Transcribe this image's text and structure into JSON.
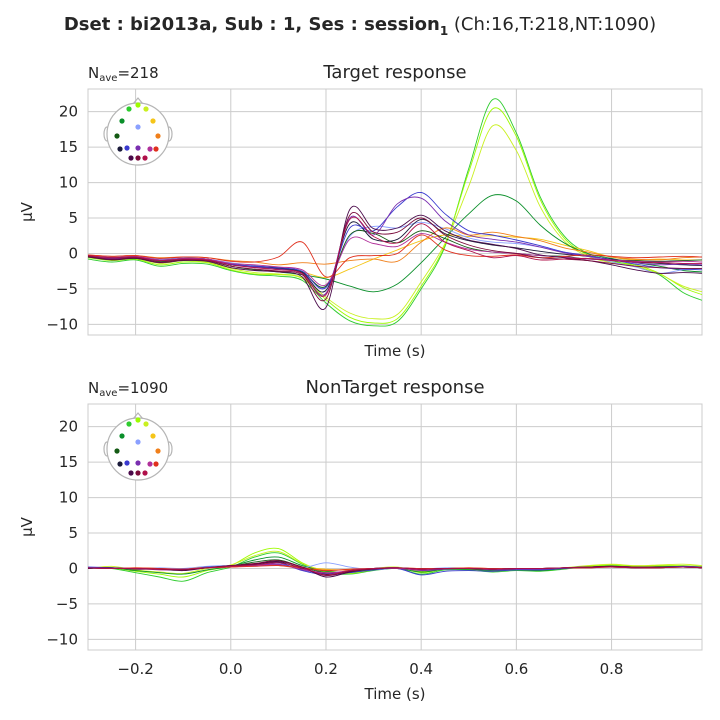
{
  "figure": {
    "suptitle_prefix": "Dset : bi2013a, Sub : 1, Ses : session",
    "suptitle_subscript": "1",
    "suptitle_suffix": " (Ch:16,T:218,NT:1090)"
  },
  "colors": {
    "grid": "#cccccc",
    "axes_bg": "#ffffff",
    "text": "#262626",
    "channels": [
      "#2ecc2e",
      "#9efc00",
      "#c9f020",
      "#f5c518",
      "#0a8f2a",
      "#8aa0ff",
      "#f07f1a",
      "#145a14",
      "#1a1a3a",
      "#3a3acf",
      "#7a2fb0",
      "#b0309a",
      "#e0301e",
      "#4a0a4a",
      "#7a0a3a",
      "#b0104a"
    ]
  },
  "chart_data": [
    {
      "type": "line",
      "title": "Target response",
      "n_ave_prefix": "N",
      "n_ave_sub": "ave",
      "n_ave_value": "=218",
      "xlabel": "Time (s)",
      "ylabel": "µV",
      "xlim": [
        -0.3,
        0.99
      ],
      "ylim": [
        -11.5,
        23.2
      ],
      "xticks": [
        -0.2,
        0.0,
        0.2,
        0.4,
        0.6,
        0.8
      ],
      "yticks": [
        20,
        15,
        10,
        5,
        0,
        -5,
        -10
      ],
      "ytick_labels": [
        "20",
        "15",
        "10",
        "5",
        "0",
        "−5",
        "−10"
      ],
      "show_xtick_labels": false,
      "grid": true,
      "x": [
        -0.3,
        -0.25,
        -0.2,
        -0.15,
        -0.1,
        -0.05,
        0.0,
        0.05,
        0.1,
        0.15,
        0.2,
        0.25,
        0.3,
        0.35,
        0.4,
        0.45,
        0.5,
        0.55,
        0.6,
        0.65,
        0.7,
        0.75,
        0.8,
        0.85,
        0.9,
        0.95,
        0.99
      ],
      "series": [
        {
          "values": [
            -0.8,
            -1.2,
            -0.9,
            -1.8,
            -1.4,
            -1.5,
            -2.4,
            -3.0,
            -3.2,
            -3.8,
            -7.0,
            -9.5,
            -10.2,
            -9.6,
            -5.0,
            1.0,
            12.0,
            21.7,
            17.0,
            8.0,
            2.5,
            0.0,
            -1.0,
            -1.8,
            -3.0,
            -5.5,
            -6.6
          ]
        },
        {
          "values": [
            -0.6,
            -1.0,
            -0.8,
            -1.6,
            -1.2,
            -1.3,
            -2.3,
            -2.9,
            -3.0,
            -3.5,
            -6.5,
            -9.0,
            -9.8,
            -9.2,
            -4.6,
            1.2,
            11.5,
            20.4,
            16.5,
            7.6,
            2.2,
            -0.2,
            -1.2,
            -1.6,
            -2.8,
            -4.8,
            -5.8
          ]
        },
        {
          "values": [
            -0.5,
            -0.9,
            -0.7,
            -1.4,
            -1.0,
            -1.2,
            -2.1,
            -2.7,
            -2.9,
            -3.4,
            -6.2,
            -8.4,
            -9.2,
            -8.6,
            -4.0,
            1.4,
            9.5,
            18.0,
            14.5,
            6.6,
            1.8,
            -0.4,
            -1.3,
            -1.8,
            -2.9,
            -4.6,
            -5.4
          ]
        },
        {
          "values": [
            -0.4,
            -0.6,
            -0.5,
            -0.9,
            -0.8,
            -0.9,
            -1.5,
            -1.9,
            -2.2,
            -2.6,
            -3.4,
            -2.2,
            -0.8,
            0.5,
            1.8,
            2.6,
            2.4,
            2.5,
            2.3,
            2.0,
            1.2,
            0.4,
            -0.5,
            -0.9,
            -0.8,
            -0.9,
            -0.9
          ]
        },
        {
          "values": [
            -0.5,
            -0.8,
            -0.7,
            -1.1,
            -0.9,
            -1.0,
            -1.8,
            -2.3,
            -2.6,
            -3.0,
            -3.6,
            -4.6,
            -5.4,
            -4.3,
            -1.3,
            2.2,
            5.6,
            8.2,
            7.4,
            4.0,
            1.5,
            0.0,
            -0.7,
            -1.3,
            -1.8,
            -2.4,
            -2.6
          ]
        },
        {
          "values": [
            -0.3,
            -0.5,
            -0.4,
            -0.8,
            -0.6,
            -0.8,
            -1.3,
            -1.7,
            -2.2,
            -2.7,
            -4.7,
            2.4,
            3.8,
            3.6,
            4.4,
            3.5,
            2.2,
            1.6,
            1.4,
            0.9,
            0.2,
            -0.4,
            -1.2,
            -1.9,
            -2.8,
            -2.3,
            -2.1
          ]
        },
        {
          "values": [
            -0.2,
            -0.4,
            -0.3,
            -0.6,
            -0.5,
            -0.6,
            -1.0,
            -1.2,
            -1.6,
            -1.3,
            -1.5,
            -1.0,
            -0.8,
            -1.1,
            1.6,
            3.6,
            2.6,
            3.0,
            2.4,
            1.8,
            0.8,
            0.2,
            -0.5,
            -0.8,
            -0.9,
            -0.6,
            -0.5
          ]
        },
        {
          "values": [
            -0.4,
            -0.6,
            -0.5,
            -0.9,
            -0.7,
            -0.8,
            -1.5,
            -1.8,
            -2.0,
            -2.6,
            -4.6,
            2.6,
            2.8,
            1.5,
            3.2,
            2.1,
            0.8,
            0.2,
            0.0,
            -0.3,
            -0.4,
            -0.8,
            -0.9,
            -1.0,
            -1.1,
            -1.0,
            -0.9
          ]
        },
        {
          "values": [
            -0.4,
            -0.7,
            -0.5,
            -1.0,
            -0.8,
            -0.9,
            -1.6,
            -1.9,
            -2.1,
            -2.7,
            -5.2,
            4.2,
            2.0,
            2.0,
            4.8,
            2.8,
            1.8,
            1.2,
            0.8,
            0.3,
            -0.1,
            -0.4,
            -0.8,
            -1.2,
            -1.4,
            -1.6,
            -1.7
          ]
        },
        {
          "values": [
            -0.3,
            -0.6,
            -0.5,
            -0.9,
            -0.7,
            -0.8,
            -1.5,
            -1.8,
            -2.0,
            -2.5,
            -4.8,
            3.6,
            3.2,
            6.6,
            8.6,
            5.6,
            3.2,
            2.6,
            1.9,
            1.1,
            0.2,
            -0.3,
            -0.9,
            -1.5,
            -2.0,
            -2.2,
            -2.3
          ]
        },
        {
          "values": [
            -0.4,
            -0.7,
            -0.6,
            -1.0,
            -0.8,
            -0.9,
            -1.6,
            -1.9,
            -2.2,
            -2.8,
            -5.6,
            5.0,
            2.6,
            7.0,
            7.8,
            4.6,
            2.6,
            2.0,
            1.6,
            0.9,
            0.1,
            -0.4,
            -0.9,
            -1.3,
            -1.6,
            -1.5,
            -1.6
          ]
        },
        {
          "values": [
            -0.3,
            -0.6,
            -0.4,
            -0.9,
            -0.7,
            -0.8,
            -1.4,
            -1.6,
            -1.9,
            -2.3,
            -4.4,
            2.0,
            1.4,
            1.0,
            2.8,
            1.6,
            0.6,
            0.2,
            0.0,
            -0.3,
            -0.5,
            -0.8,
            -0.9,
            -1.1,
            -1.2,
            -1.1,
            -1.2
          ]
        },
        {
          "values": [
            -0.2,
            -0.4,
            -0.3,
            -0.7,
            -0.5,
            -0.6,
            -1.1,
            -1.2,
            -0.5,
            1.6,
            -3.3,
            -0.6,
            -0.3,
            0.0,
            2.6,
            0.5,
            -0.3,
            -0.4,
            -0.2,
            -0.6,
            -0.4,
            -0.2,
            -0.4,
            -0.6,
            -0.5,
            -0.4,
            -0.5
          ]
        },
        {
          "values": [
            -0.5,
            -0.9,
            -0.7,
            -1.3,
            -1.0,
            -1.1,
            -2.0,
            -2.4,
            -2.6,
            -3.3,
            -7.6,
            6.2,
            3.5,
            3.6,
            5.4,
            3.2,
            1.9,
            1.3,
            0.7,
            -0.2,
            -0.6,
            -1.0,
            -1.6,
            -2.3,
            -2.8,
            -2.7,
            -2.8
          ]
        },
        {
          "values": [
            -0.4,
            -0.8,
            -0.6,
            -1.2,
            -0.9,
            -1.0,
            -1.8,
            -2.2,
            -2.5,
            -3.0,
            -6.4,
            5.4,
            3.0,
            3.0,
            5.0,
            2.6,
            1.2,
            0.4,
            0.0,
            -0.6,
            -0.8,
            -1.0,
            -1.4,
            -1.8,
            -2.0,
            -2.1,
            -2.1
          ]
        },
        {
          "values": [
            -0.3,
            -0.6,
            -0.5,
            -1.0,
            -0.8,
            -0.9,
            -1.6,
            -2.0,
            -2.3,
            -2.8,
            -5.8,
            4.8,
            2.4,
            1.5,
            4.2,
            1.6,
            0.4,
            -0.6,
            -0.3,
            -0.9,
            -0.8,
            -0.7,
            -1.0,
            -1.2,
            -1.3,
            -1.4,
            -1.4
          ]
        }
      ]
    },
    {
      "type": "line",
      "title": "NonTarget response",
      "n_ave_prefix": "N",
      "n_ave_sub": "ave",
      "n_ave_value": "=1090",
      "xlabel": "Time (s)",
      "ylabel": "µV",
      "xlim": [
        -0.3,
        0.99
      ],
      "ylim": [
        -11.5,
        23.2
      ],
      "xticks": [
        -0.2,
        0.0,
        0.2,
        0.4,
        0.6,
        0.8
      ],
      "xtick_labels": [
        "−0.2",
        "0.0",
        "0.2",
        "0.4",
        "0.6",
        "0.8"
      ],
      "yticks": [
        20,
        15,
        10,
        5,
        0,
        -5,
        -10
      ],
      "ytick_labels": [
        "20",
        "15",
        "10",
        "5",
        "0",
        "−5",
        "−10"
      ],
      "show_xtick_labels": true,
      "grid": true,
      "x": [
        -0.3,
        -0.25,
        -0.2,
        -0.15,
        -0.1,
        -0.05,
        0.0,
        0.05,
        0.1,
        0.15,
        0.2,
        0.25,
        0.3,
        0.35,
        0.4,
        0.45,
        0.5,
        0.55,
        0.6,
        0.65,
        0.7,
        0.75,
        0.8,
        0.85,
        0.9,
        0.95,
        0.99
      ],
      "series": [
        {
          "values": [
            0.1,
            0.0,
            -0.6,
            -1.2,
            -1.8,
            -0.6,
            0.2,
            1.6,
            2.2,
            0.6,
            -0.6,
            -0.8,
            -0.3,
            0.0,
            -0.8,
            -0.2,
            -0.2,
            -0.5,
            -0.3,
            -0.4,
            -0.1,
            0.3,
            0.4,
            0.2,
            0.3,
            0.3,
            0.2
          ]
        },
        {
          "values": [
            0.1,
            0.1,
            -0.4,
            -0.8,
            -1.2,
            -0.3,
            0.4,
            2.2,
            2.8,
            0.8,
            -0.5,
            -0.7,
            -0.2,
            0.1,
            -0.6,
            -0.1,
            -0.1,
            -0.4,
            -0.2,
            -0.3,
            0.0,
            0.3,
            0.5,
            0.3,
            0.4,
            0.4,
            0.3
          ]
        },
        {
          "values": [
            0.0,
            0.3,
            -0.2,
            -0.5,
            -0.7,
            0.0,
            0.5,
            1.8,
            2.4,
            0.7,
            -0.3,
            -0.5,
            0.0,
            0.2,
            -0.4,
            0.0,
            0.0,
            -0.3,
            -0.1,
            -0.2,
            0.1,
            0.4,
            0.6,
            0.4,
            0.5,
            0.6,
            0.4
          ]
        },
        {
          "values": [
            0.1,
            0.0,
            0.0,
            -0.1,
            -0.2,
            0.1,
            0.2,
            0.4,
            0.5,
            0.2,
            -0.1,
            -0.2,
            0.0,
            0.0,
            -0.1,
            0.0,
            0.0,
            -0.1,
            0.0,
            -0.1,
            0.0,
            0.1,
            0.2,
            0.1,
            0.1,
            0.2,
            0.1
          ]
        },
        {
          "values": [
            0.0,
            0.1,
            -0.3,
            -0.6,
            -0.8,
            -0.2,
            0.3,
            1.2,
            1.6,
            0.4,
            -0.4,
            -0.5,
            -0.2,
            0.0,
            -0.5,
            -0.1,
            -0.1,
            -0.3,
            -0.2,
            -0.3,
            0.0,
            0.2,
            0.3,
            0.2,
            0.2,
            0.3,
            0.2
          ]
        },
        {
          "values": [
            0.2,
            0.1,
            0.0,
            0.1,
            0.0,
            0.3,
            0.4,
            0.3,
            0.6,
            0.1,
            0.8,
            0.2,
            -0.2,
            0.1,
            -0.1,
            0.1,
            0.0,
            -0.1,
            0.0,
            0.0,
            0.1,
            0.2,
            0.2,
            0.1,
            0.2,
            0.2,
            0.1
          ]
        },
        {
          "values": [
            0.1,
            0.0,
            0.1,
            0.0,
            -0.1,
            0.2,
            0.3,
            0.5,
            0.4,
            0.0,
            -0.2,
            -0.2,
            0.0,
            0.1,
            0.0,
            0.0,
            0.1,
            0.0,
            0.0,
            0.0,
            0.1,
            0.2,
            0.2,
            0.1,
            0.1,
            0.2,
            0.1
          ]
        },
        {
          "values": [
            0.1,
            0.0,
            0.0,
            -0.1,
            -0.2,
            0.1,
            0.3,
            0.9,
            1.2,
            0.2,
            -0.6,
            -0.4,
            -0.1,
            0.1,
            -0.2,
            0.0,
            0.0,
            -0.1,
            0.0,
            0.0,
            0.1,
            0.2,
            0.2,
            0.1,
            0.1,
            0.2,
            0.1
          ]
        },
        {
          "values": [
            0.1,
            0.0,
            0.0,
            -0.1,
            -0.1,
            0.1,
            0.4,
            0.6,
            0.9,
            0.0,
            -0.8,
            -0.3,
            0.0,
            0.1,
            -0.2,
            0.0,
            0.0,
            -0.1,
            0.0,
            -0.1,
            0.1,
            0.2,
            0.3,
            0.1,
            0.2,
            0.2,
            0.1
          ]
        },
        {
          "values": [
            0.2,
            0.1,
            0.0,
            0.0,
            -0.2,
            0.2,
            0.3,
            0.4,
            0.8,
            -0.3,
            -0.9,
            -0.6,
            -0.2,
            0.0,
            -0.9,
            -0.4,
            -0.3,
            -0.4,
            -0.2,
            -0.2,
            0.0,
            0.2,
            0.3,
            0.2,
            0.2,
            0.3,
            0.2
          ]
        },
        {
          "values": [
            0.1,
            0.1,
            0.0,
            -0.1,
            -0.2,
            0.1,
            0.3,
            0.5,
            0.6,
            -0.2,
            -0.7,
            -0.4,
            0.0,
            0.1,
            -0.3,
            -0.1,
            0.0,
            -0.2,
            -0.1,
            -0.1,
            0.1,
            0.2,
            0.3,
            0.2,
            0.2,
            0.2,
            0.2
          ]
        },
        {
          "values": [
            0.1,
            0.0,
            0.0,
            -0.2,
            -0.2,
            0.1,
            0.2,
            0.4,
            0.5,
            -0.1,
            -0.6,
            -0.3,
            0.0,
            0.0,
            -0.2,
            0.0,
            0.0,
            -0.1,
            0.0,
            0.0,
            0.1,
            0.2,
            0.2,
            0.1,
            0.2,
            0.2,
            0.1
          ]
        },
        {
          "values": [
            0.1,
            0.0,
            0.1,
            0.0,
            -0.1,
            0.1,
            0.2,
            0.3,
            0.4,
            0.1,
            -0.3,
            -0.1,
            0.0,
            0.1,
            0.0,
            0.0,
            0.1,
            0.0,
            0.0,
            0.0,
            0.1,
            0.1,
            0.2,
            0.1,
            0.1,
            0.2,
            0.1
          ]
        },
        {
          "values": [
            0.0,
            0.1,
            -0.1,
            -0.1,
            -0.3,
            0.1,
            0.4,
            0.6,
            1.0,
            0.2,
            -1.2,
            -0.5,
            0.0,
            0.1,
            -0.1,
            0.0,
            0.0,
            -0.1,
            0.0,
            0.0,
            0.1,
            0.2,
            0.3,
            0.1,
            0.2,
            0.2,
            0.1
          ]
        },
        {
          "values": [
            0.1,
            0.0,
            0.0,
            -0.1,
            -0.2,
            0.1,
            0.4,
            0.7,
            1.1,
            0.2,
            -1.0,
            -0.4,
            -0.1,
            0.1,
            -0.1,
            0.0,
            0.0,
            -0.1,
            0.0,
            0.0,
            0.1,
            0.2,
            0.3,
            0.2,
            0.2,
            0.2,
            0.1
          ]
        },
        {
          "values": [
            0.1,
            0.0,
            0.0,
            -0.1,
            -0.1,
            0.1,
            0.3,
            0.5,
            0.8,
            0.1,
            -0.9,
            -0.3,
            0.0,
            0.1,
            -0.1,
            0.0,
            0.0,
            -0.1,
            0.0,
            0.0,
            0.1,
            0.1,
            0.2,
            0.1,
            0.1,
            0.2,
            0.1
          ]
        }
      ]
    }
  ]
}
